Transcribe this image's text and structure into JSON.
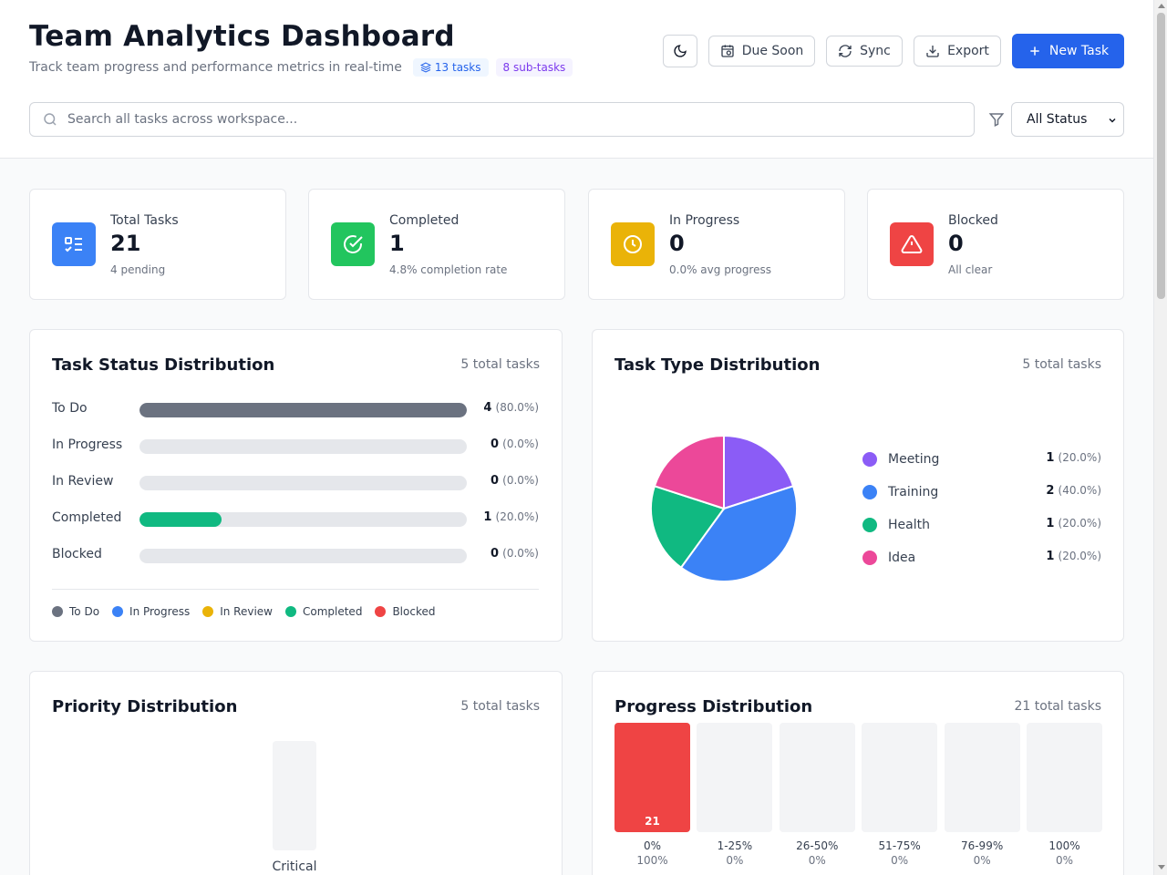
{
  "header": {
    "title": "Team Analytics Dashboard",
    "subtitle": "Track team progress and performance metrics in real-time",
    "tasks_badge": "13 tasks",
    "subtasks_badge": "8 sub-tasks",
    "due_soon_label": "Due Soon",
    "sync_label": "Sync",
    "export_label": "Export",
    "new_task_label": "New Task",
    "search_placeholder": "Search all tasks across workspace...",
    "status_filter": "All Status",
    "colors": {
      "primary": "#2563eb"
    }
  },
  "stats": [
    {
      "label": "Total Tasks",
      "value": "21",
      "sub": "4 pending",
      "color": "#3b82f6",
      "icon": "list-check-icon"
    },
    {
      "label": "Completed",
      "value": "1",
      "sub": "4.8% completion rate",
      "color": "#22c55e",
      "icon": "check-circle-icon"
    },
    {
      "label": "In Progress",
      "value": "0",
      "sub": "0.0% avg progress",
      "color": "#eab308",
      "icon": "clock-icon"
    },
    {
      "label": "Blocked",
      "value": "0",
      "sub": "All clear",
      "color": "#ef4444",
      "icon": "warning-icon"
    }
  ],
  "status_panel": {
    "title": "Task Status Distribution",
    "count": "5 total tasks",
    "rows": [
      {
        "label": "To Do",
        "value": "4",
        "pct": "(80.0%)",
        "fraction": 1.0,
        "color": "#6b7280"
      },
      {
        "label": "In Progress",
        "value": "0",
        "pct": "(0.0%)",
        "fraction": 0,
        "color": "#3b82f6"
      },
      {
        "label": "In Review",
        "value": "0",
        "pct": "(0.0%)",
        "fraction": 0,
        "color": "#eab308"
      },
      {
        "label": "Completed",
        "value": "1",
        "pct": "(20.0%)",
        "fraction": 0.25,
        "color": "#10b981"
      },
      {
        "label": "Blocked",
        "value": "0",
        "pct": "(0.0%)",
        "fraction": 0,
        "color": "#ef4444"
      }
    ],
    "legend": [
      "To Do",
      "In Progress",
      "In Review",
      "Completed",
      "Blocked"
    ]
  },
  "type_panel": {
    "title": "Task Type Distribution",
    "count": "5 total tasks",
    "items": [
      {
        "label": "Meeting",
        "value": "1",
        "pct": "(20.0%)",
        "color": "#8b5cf6"
      },
      {
        "label": "Training",
        "value": "2",
        "pct": "(40.0%)",
        "color": "#3b82f6"
      },
      {
        "label": "Health",
        "value": "1",
        "pct": "(20.0%)",
        "color": "#10b981"
      },
      {
        "label": "Idea",
        "value": "1",
        "pct": "(20.0%)",
        "color": "#ec4899"
      }
    ]
  },
  "priority_panel": {
    "title": "Priority Distribution",
    "count": "5 total tasks",
    "bar_label": "Critical"
  },
  "progress_panel": {
    "title": "Progress Distribution",
    "count": "21 total tasks",
    "buckets": [
      {
        "label": "0%",
        "pct": "100%",
        "count": "21",
        "fraction": 1.0
      },
      {
        "label": "1-25%",
        "pct": "0%",
        "count": "",
        "fraction": 0
      },
      {
        "label": "26-50%",
        "pct": "0%",
        "count": "",
        "fraction": 0
      },
      {
        "label": "51-75%",
        "pct": "0%",
        "count": "",
        "fraction": 0
      },
      {
        "label": "76-99%",
        "pct": "0%",
        "count": "",
        "fraction": 0
      },
      {
        "label": "100%",
        "pct": "0%",
        "count": "",
        "fraction": 0
      }
    ]
  }
}
